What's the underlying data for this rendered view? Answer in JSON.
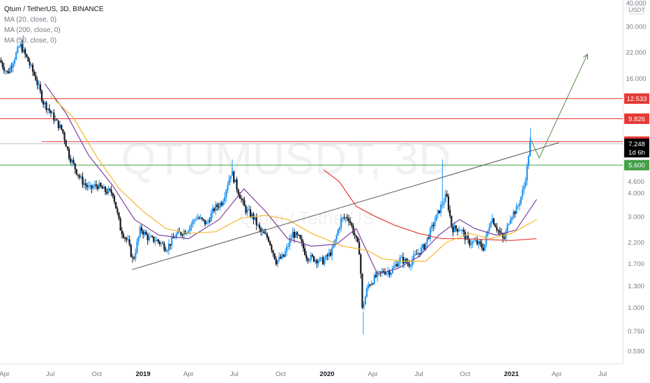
{
  "legend": {
    "symbol_line": "Qtum / TetherUS, 3D, BINANCE",
    "ma1": "MA (20, close, 0)",
    "ma2": "MA (200, close, 0)",
    "ma3": "MA (50, close, 0)"
  },
  "watermark": {
    "ticker": "QTUMUSDT, 3D",
    "name": "Qtum / TetherUS"
  },
  "chart_data": {
    "type": "candlestick",
    "title": "Qtum / TetherUS, 3D, BINANCE",
    "y_scale": "log",
    "ylim": [
      0.52,
      40
    ],
    "currency": "USDT",
    "y_ticks": [
      "40.000",
      "30.000",
      "22.000",
      "16.000",
      "12.533",
      "9.826",
      "7.443",
      "7.248",
      "1d 6h",
      "5.600",
      "4.600",
      "4.000",
      "3.000",
      "2.200",
      "1.700",
      "1.300",
      "1.000",
      "0.750",
      "0.590"
    ],
    "y_tick_values": [
      40,
      30,
      22,
      16,
      4.6,
      4,
      3,
      2.2,
      1.7,
      1.3,
      1.0,
      0.75,
      0.59
    ],
    "x_labels": [
      "Apr",
      "Jul",
      "Oct",
      "2019",
      "Apr",
      "Jul",
      "Oct",
      "2020",
      "Apr",
      "Jul",
      "Oct",
      "2021",
      "Apr",
      "Jul"
    ],
    "x_label_dates": [
      "2018-04-01",
      "2018-07-01",
      "2018-10-01",
      "2019-01-01",
      "2019-04-01",
      "2019-07-01",
      "2019-10-01",
      "2020-01-01",
      "2020-04-01",
      "2020-07-01",
      "2020-10-01",
      "2021-01-01",
      "2021-04-01",
      "2021-07-01"
    ],
    "x_range": [
      "2018-03-23",
      "2021-08-10"
    ],
    "price_path": [
      [
        "2018-03-25",
        20
      ],
      [
        "2018-04-10",
        17
      ],
      [
        "2018-04-25",
        21
      ],
      [
        "2018-05-05",
        24
      ],
      [
        "2018-05-20",
        20
      ],
      [
        "2018-06-05",
        16
      ],
      [
        "2018-06-20",
        12
      ],
      [
        "2018-07-01",
        11
      ],
      [
        "2018-07-15",
        9.5
      ],
      [
        "2018-07-28",
        8.5
      ],
      [
        "2018-08-10",
        6.3
      ],
      [
        "2018-08-25",
        5.2
      ],
      [
        "2018-09-05",
        4.6
      ],
      [
        "2018-09-20",
        4.2
      ],
      [
        "2018-10-05",
        4.4
      ],
      [
        "2018-10-20",
        4.1
      ],
      [
        "2018-11-05",
        4.0
      ],
      [
        "2018-11-20",
        2.6
      ],
      [
        "2018-12-05",
        2.2
      ],
      [
        "2018-12-15",
        1.75
      ],
      [
        "2018-12-30",
        2.6
      ],
      [
        "2019-01-15",
        2.3
      ],
      [
        "2019-02-01",
        2.25
      ],
      [
        "2019-02-20",
        2.05
      ],
      [
        "2019-03-10",
        2.4
      ],
      [
        "2019-04-01",
        2.55
      ],
      [
        "2019-04-20",
        3.0
      ],
      [
        "2019-05-10",
        2.75
      ],
      [
        "2019-05-25",
        3.3
      ],
      [
        "2019-06-10",
        3.6
      ],
      [
        "2019-06-28",
        5.2
      ],
      [
        "2019-07-10",
        4.2
      ],
      [
        "2019-07-25",
        3.3
      ],
      [
        "2019-08-10",
        3.0
      ],
      [
        "2019-08-25",
        2.5
      ],
      [
        "2019-09-10",
        2.3
      ],
      [
        "2019-09-25",
        1.75
      ],
      [
        "2019-10-10",
        1.85
      ],
      [
        "2019-10-28",
        2.45
      ],
      [
        "2019-11-10",
        2.3
      ],
      [
        "2019-11-25",
        1.85
      ],
      [
        "2019-12-10",
        1.8
      ],
      [
        "2019-12-28",
        1.75
      ],
      [
        "2020-01-15",
        2.0
      ],
      [
        "2020-02-01",
        2.9
      ],
      [
        "2020-02-15",
        3.0
      ],
      [
        "2020-02-28",
        2.4
      ],
      [
        "2020-03-10",
        1.9
      ],
      [
        "2020-03-13",
        0.95
      ],
      [
        "2020-03-25",
        1.3
      ],
      [
        "2020-04-10",
        1.45
      ],
      [
        "2020-04-25",
        1.55
      ],
      [
        "2020-05-10",
        1.55
      ],
      [
        "2020-05-28",
        1.8
      ],
      [
        "2020-06-15",
        1.7
      ],
      [
        "2020-06-30",
        1.9
      ],
      [
        "2020-07-15",
        2.1
      ],
      [
        "2020-08-01",
        2.7
      ],
      [
        "2020-08-15",
        3.3
      ],
      [
        "2020-08-28",
        3.9
      ],
      [
        "2020-09-08",
        2.6
      ],
      [
        "2020-09-25",
        2.6
      ],
      [
        "2020-10-10",
        2.2
      ],
      [
        "2020-10-25",
        2.2
      ],
      [
        "2020-11-10",
        2.05
      ],
      [
        "2020-11-25",
        3.0
      ],
      [
        "2020-12-10",
        2.5
      ],
      [
        "2020-12-20",
        2.25
      ],
      [
        "2021-01-01",
        3.0
      ],
      [
        "2021-01-15",
        3.3
      ],
      [
        "2021-01-28",
        4.2
      ],
      [
        "2021-02-05",
        5.6
      ],
      [
        "2021-02-09",
        7.25
      ]
    ],
    "spikes": [
      {
        "date": "2018-05-08",
        "high": 27
      },
      {
        "date": "2019-06-27",
        "high": 6.0
      },
      {
        "date": "2020-03-13",
        "low": 0.72
      },
      {
        "date": "2020-08-17",
        "high": 6.0
      },
      {
        "date": "2021-02-08",
        "high": 8.8
      }
    ],
    "moving_averages": [
      {
        "name": "MA (20, close, 0)",
        "color": "#7b3f9e",
        "points": [
          [
            "2018-06-20",
            15
          ],
          [
            "2018-08-01",
            10.5
          ],
          [
            "2018-09-15",
            6.3
          ],
          [
            "2018-11-01",
            4.4
          ],
          [
            "2018-12-15",
            2.9
          ],
          [
            "2019-02-01",
            2.4
          ],
          [
            "2019-04-01",
            2.3
          ],
          [
            "2019-06-01",
            2.9
          ],
          [
            "2019-07-20",
            4.2
          ],
          [
            "2019-09-01",
            3.2
          ],
          [
            "2019-10-15",
            2.3
          ],
          [
            "2019-12-01",
            2.1
          ],
          [
            "2020-01-20",
            2.15
          ],
          [
            "2020-02-28",
            2.6
          ],
          [
            "2020-04-10",
            1.5
          ],
          [
            "2020-05-20",
            1.6
          ],
          [
            "2020-07-01",
            1.85
          ],
          [
            "2020-08-10",
            2.4
          ],
          [
            "2020-09-20",
            2.9
          ],
          [
            "2020-10-20",
            2.6
          ],
          [
            "2020-12-01",
            2.4
          ],
          [
            "2021-01-10",
            2.55
          ],
          [
            "2021-02-20",
            3.7
          ]
        ]
      },
      {
        "name": "MA (200, close, 0)",
        "color": "#e53935",
        "points": [
          [
            "2019-12-25",
            5.3
          ],
          [
            "2020-01-25",
            4.6
          ],
          [
            "2020-02-28",
            3.4
          ],
          [
            "2020-04-01",
            3.05
          ],
          [
            "2020-05-15",
            2.7
          ],
          [
            "2020-07-01",
            2.45
          ],
          [
            "2020-08-15",
            2.3
          ],
          [
            "2020-10-01",
            2.3
          ],
          [
            "2020-11-15",
            2.27
          ],
          [
            "2021-01-01",
            2.25
          ],
          [
            "2021-02-20",
            2.3
          ]
        ]
      },
      {
        "name": "MA (50, close, 0)",
        "color": "#f5b92e",
        "points": [
          [
            "2018-07-01",
            13
          ],
          [
            "2018-08-15",
            10
          ],
          [
            "2018-10-01",
            6.2
          ],
          [
            "2018-11-15",
            4.2
          ],
          [
            "2019-01-01",
            3.2
          ],
          [
            "2019-02-15",
            2.6
          ],
          [
            "2019-04-01",
            2.45
          ],
          [
            "2019-05-25",
            2.5
          ],
          [
            "2019-07-15",
            2.95
          ],
          [
            "2019-09-01",
            3.05
          ],
          [
            "2019-10-15",
            2.9
          ],
          [
            "2019-12-01",
            2.45
          ],
          [
            "2020-02-01",
            2.1
          ],
          [
            "2020-03-20",
            2.0
          ],
          [
            "2020-04-20",
            1.8
          ],
          [
            "2020-06-01",
            1.75
          ],
          [
            "2020-07-15",
            1.75
          ],
          [
            "2020-08-25",
            2.2
          ],
          [
            "2020-10-10",
            2.45
          ],
          [
            "2020-11-20",
            2.3
          ],
          [
            "2021-01-01",
            2.45
          ],
          [
            "2021-02-20",
            2.9
          ]
        ]
      }
    ],
    "horizontal_levels": [
      {
        "price": 12.533,
        "label": "12.533",
        "color": "#e53935"
      },
      {
        "price": 9.826,
        "label": "9.826",
        "color": "#e53935"
      },
      {
        "price": 7.443,
        "label": "7.443",
        "color": "#e53935"
      },
      {
        "price": 5.6,
        "label": "5.600",
        "color": "#43a047"
      }
    ],
    "price_tags": [
      {
        "label": "7.248",
        "price": 7.248,
        "color": "#000000"
      },
      {
        "label": "1d 6h",
        "price": 6.55,
        "color": "#000000"
      }
    ],
    "trendlines": [
      {
        "color": "#555555",
        "points": [
          [
            "2018-12-10",
            1.58
          ],
          [
            "2021-04-05",
            7.35
          ]
        ]
      }
    ],
    "projection": [
      [
        "2021-02-09",
        7.6
      ],
      [
        "2021-02-25",
        6.1
      ],
      [
        "2021-06-01",
        21.5
      ]
    ],
    "projection_color": "#5a8a50"
  }
}
